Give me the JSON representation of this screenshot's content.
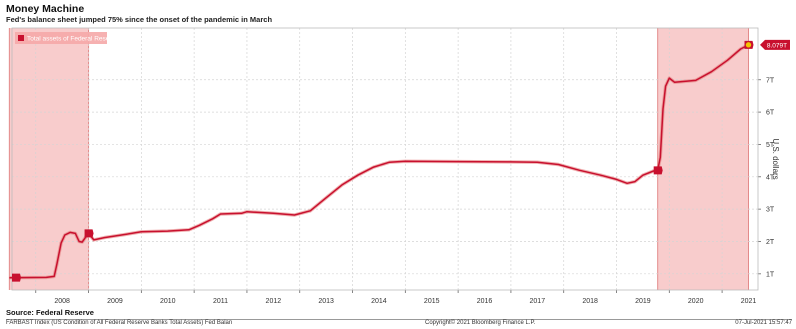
{
  "title": "Money Machine",
  "subtitle": "Fed's balance sheet jumped 75% since the onset of the pandemic in March",
  "source": "Source: Federal Reserve",
  "footer": {
    "left": "FARBAST Index (US Condition of All Federal Reserve Banks Total Assets) Fed Balan",
    "center": "Copyright© 2021 Bloomberg Finance L.P.",
    "right": "07-Jul-2021 15:57:47"
  },
  "chart_data": {
    "type": "line",
    "series": [
      {
        "name": "Total assets of Federal Reserve",
        "color": "#c8102e",
        "points": [
          [
            2007.5,
            0.88
          ],
          [
            2008.2,
            0.89
          ],
          [
            2008.35,
            0.92
          ],
          [
            2008.4,
            1.3
          ],
          [
            2008.48,
            1.95
          ],
          [
            2008.55,
            2.2
          ],
          [
            2008.65,
            2.28
          ],
          [
            2008.75,
            2.25
          ],
          [
            2008.82,
            2.0
          ],
          [
            2008.88,
            1.98
          ],
          [
            2008.93,
            2.1
          ],
          [
            2009.0,
            2.25
          ],
          [
            2009.1,
            2.05
          ],
          [
            2009.3,
            2.12
          ],
          [
            2009.7,
            2.22
          ],
          [
            2010.0,
            2.3
          ],
          [
            2010.5,
            2.32
          ],
          [
            2010.9,
            2.36
          ],
          [
            2011.1,
            2.5
          ],
          [
            2011.35,
            2.7
          ],
          [
            2011.5,
            2.85
          ],
          [
            2011.9,
            2.87
          ],
          [
            2012.0,
            2.92
          ],
          [
            2012.5,
            2.87
          ],
          [
            2012.9,
            2.82
          ],
          [
            2013.2,
            2.95
          ],
          [
            2013.5,
            3.35
          ],
          [
            2013.8,
            3.75
          ],
          [
            2014.1,
            4.05
          ],
          [
            2014.4,
            4.3
          ],
          [
            2014.7,
            4.45
          ],
          [
            2015.0,
            4.48
          ],
          [
            2016.0,
            4.47
          ],
          [
            2017.0,
            4.46
          ],
          [
            2017.5,
            4.45
          ],
          [
            2017.9,
            4.38
          ],
          [
            2018.3,
            4.2
          ],
          [
            2018.7,
            4.05
          ],
          [
            2019.0,
            3.92
          ],
          [
            2019.2,
            3.8
          ],
          [
            2019.35,
            3.85
          ],
          [
            2019.5,
            4.05
          ],
          [
            2019.7,
            4.18
          ],
          [
            2019.78,
            4.2
          ],
          [
            2019.83,
            4.6
          ],
          [
            2019.88,
            6.1
          ],
          [
            2019.93,
            6.8
          ],
          [
            2020.0,
            7.05
          ],
          [
            2020.1,
            6.92
          ],
          [
            2020.5,
            6.98
          ],
          [
            2020.8,
            7.25
          ],
          [
            2021.1,
            7.6
          ],
          [
            2021.35,
            7.95
          ],
          [
            2021.5,
            8.079
          ]
        ]
      }
    ],
    "annotations": [
      "8.079T"
    ],
    "shaded_periods": [
      [
        2007.5,
        2009.0
      ],
      [
        2019.78,
        2021.5
      ]
    ],
    "x_ticks": [
      "2008",
      "2009",
      "2010",
      "2011",
      "2012",
      "2013",
      "2014",
      "2015",
      "2016",
      "2017",
      "2018",
      "2019",
      "2020",
      "2021"
    ],
    "y_ticks": [
      "1T",
      "2T",
      "3T",
      "4T",
      "5T",
      "6T",
      "7T"
    ],
    "ylabel": "U.S. dollars",
    "xlim": [
      2007.55,
      2021.68
    ],
    "ylim": [
      0.5,
      8.6
    ],
    "grid": true,
    "legend_position": "top-left"
  }
}
